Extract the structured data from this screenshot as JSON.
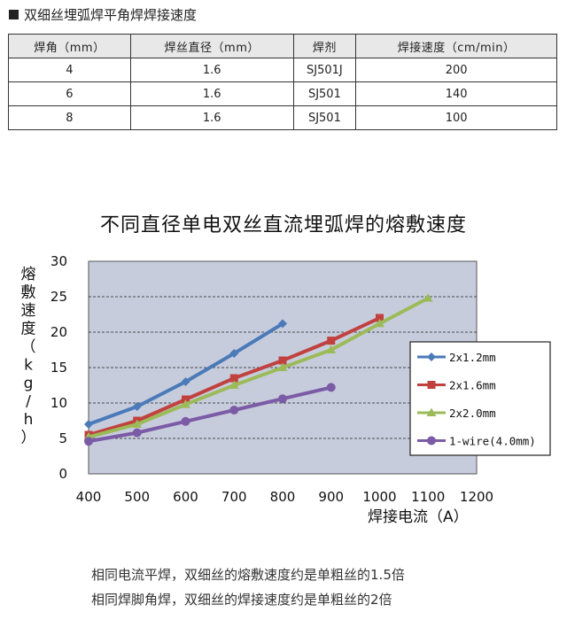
{
  "section": {
    "title": "双细丝埋弧焊平角焊焊接速度"
  },
  "table": {
    "headers": [
      "焊角（mm）",
      "焊丝直径（mm）",
      "焊剂",
      "焊接速度（cm/min）"
    ],
    "rows": [
      [
        "4",
        "1.6",
        "SJ501J",
        "200"
      ],
      [
        "6",
        "1.6",
        "SJ501",
        "140"
      ],
      [
        "8",
        "1.6",
        "SJ501",
        "100"
      ]
    ]
  },
  "chart_data": {
    "type": "line",
    "title": "不同直径单电双丝直流埋弧焊的熔敷速度",
    "xlabel": "焊接电流（A）",
    "ylabel": "熔敷速度（kg/h）",
    "xlim": [
      400,
      1200
    ],
    "ylim": [
      0,
      30
    ],
    "xticks": [
      400,
      500,
      600,
      700,
      800,
      900,
      1000,
      1100,
      1200
    ],
    "yticks": [
      0,
      5,
      10,
      15,
      20,
      25,
      30
    ],
    "grid": "horizontal-dashed",
    "legend_position": "right",
    "series": [
      {
        "name": "2x1.2mm",
        "color": "#4a7ab8",
        "marker": "diamond",
        "x": [
          400,
          500,
          600,
          700,
          800
        ],
        "y": [
          7,
          9.5,
          13,
          17,
          21.2
        ]
      },
      {
        "name": "2x1.6mm",
        "color": "#c0413e",
        "marker": "square",
        "x": [
          400,
          500,
          600,
          700,
          800,
          900,
          1000
        ],
        "y": [
          5.5,
          7.5,
          10.5,
          13.5,
          16,
          18.8,
          22
        ]
      },
      {
        "name": "2x2.0mm",
        "color": "#9bbb59",
        "marker": "triangle",
        "x": [
          400,
          500,
          600,
          700,
          800,
          900,
          1000,
          1100
        ],
        "y": [
          5.2,
          7,
          9.8,
          12.5,
          15,
          17.5,
          21.2,
          24.8
        ]
      },
      {
        "name": "1-wire(4.0mm)",
        "color": "#7b5ba6",
        "marker": "circle",
        "x": [
          400,
          500,
          600,
          700,
          800,
          900
        ],
        "y": [
          4.6,
          5.8,
          7.4,
          9,
          10.6,
          12.2
        ]
      }
    ]
  },
  "notes": [
    "相同电流平焊，双细丝的熔敷速度约是单粗丝的1.5倍",
    "相同焊脚角焊，双细丝的焊接速度约是单粗丝的2倍"
  ]
}
